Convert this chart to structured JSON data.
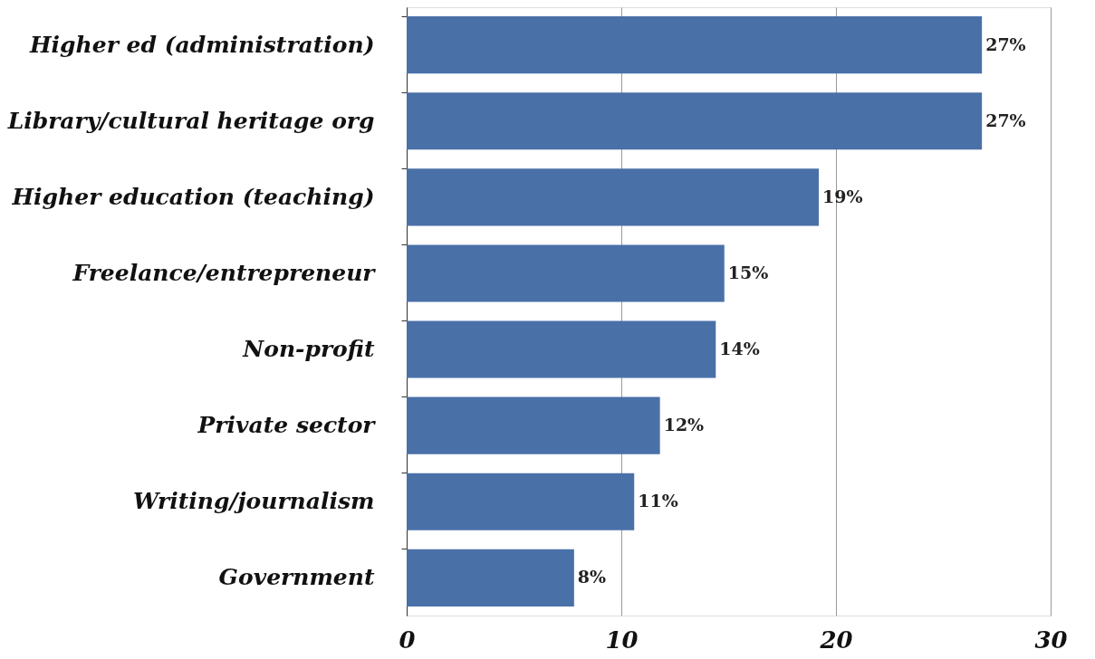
{
  "chart_data": {
    "type": "bar",
    "orientation": "horizontal",
    "categories": [
      "Higher ed (administration)",
      "Library/cultural heritage org",
      "Higher education (teaching)",
      "Freelance/entrepreneur",
      "Non-profit",
      "Private sector",
      "Writing/journalism",
      "Government"
    ],
    "values": [
      26.8,
      26.8,
      19.2,
      14.8,
      14.4,
      11.8,
      10.6,
      7.8
    ],
    "value_labels": [
      "27%",
      "27%",
      "19%",
      "15%",
      "14%",
      "12%",
      "11%",
      "8%"
    ],
    "color": "#4a70a8",
    "xlim": [
      0,
      30
    ],
    "xticks": [
      0,
      10,
      20,
      30
    ],
    "grid": "x"
  }
}
